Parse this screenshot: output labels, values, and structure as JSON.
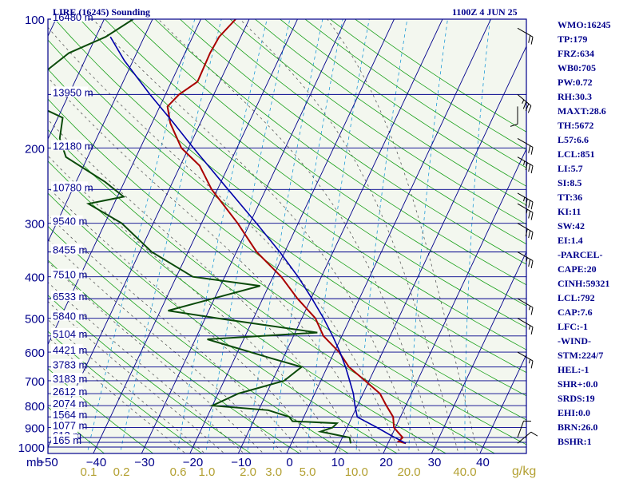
{
  "header": {
    "title": "LIRE (16245) Sounding",
    "datetime": "1100Z  4 JUN 25"
  },
  "indices": [
    "WMO:16245",
    "TP:179",
    "FRZ:634",
    "WB0:705",
    "PW:0.72",
    "RH:30.3",
    "MAXT:28.6",
    "TH:5672",
    "L57:6.6",
    "LCL:851",
    "LI:5.7",
    "SI:8.5",
    "TT:36",
    "KI:11",
    "SW:42",
    "EI:1.4",
    "-PARCEL-",
    "CAPE:20",
    "CINH:59321",
    "LCL:792",
    "CAP:7.6",
    "LFC:-1",
    "-WIND-",
    "STM:224/7",
    "HEL:-1",
    "SHR+:0.0",
    "SRDS:19",
    "EHI:0.0",
    "BRN:26.0",
    "BSHR:1"
  ],
  "colors": {
    "frame": "#00008b",
    "isobar": "#00008b",
    "isotherm": "#00008b",
    "dry_adiabat": "#1aa01a",
    "moist_adiabat": "#5a5a5a",
    "mixing_ratio": "#1e9bd7",
    "temperature": "#aa0000",
    "dewpoint": "#0a4a0a",
    "parcel": "#0000aa",
    "background": "#f3f7ef",
    "mixing_label": "#b3a032",
    "barb": "#000000"
  },
  "chart_data": {
    "type": "skew-t",
    "xlabel": "mb",
    "x_unit_right": "g/kg",
    "pressure_ticks": [
      100,
      200,
      300,
      400,
      500,
      600,
      700,
      800,
      900,
      1000
    ],
    "temperature_ticks": [
      -50,
      -40,
      -30,
      -20,
      -10,
      0,
      10,
      20,
      30,
      40
    ],
    "mixing_ratio_labels": [
      "0.1",
      "0.2",
      "0.6",
      "1.0",
      "2.0",
      "3.0",
      "5.0",
      "10.0",
      "20.0",
      "40.0"
    ],
    "mixing_ratio_values": [
      0.1,
      0.2,
      0.6,
      1.0,
      2.0,
      3.0,
      5.0,
      10.0,
      20.0,
      40.0
    ],
    "xlim_celsius_at_1000mb": [
      -50,
      50
    ],
    "ylim_mb": [
      1000,
      100
    ],
    "height_levels": [
      {
        "p": 100,
        "label": "16480 m"
      },
      {
        "p": 150,
        "label": "13950 m"
      },
      {
        "p": 200,
        "label": "12180 m"
      },
      {
        "p": 250,
        "label": "10780 m"
      },
      {
        "p": 300,
        "label": "9540 m"
      },
      {
        "p": 350,
        "label": "8455 m"
      },
      {
        "p": 400,
        "label": "7510 m"
      },
      {
        "p": 450,
        "label": "6533 m"
      },
      {
        "p": 500,
        "label": "5840 m"
      },
      {
        "p": 550,
        "label": "5104 m"
      },
      {
        "p": 600,
        "label": "4421 m"
      },
      {
        "p": 650,
        "label": "3783 m"
      },
      {
        "p": 700,
        "label": "3183 m"
      },
      {
        "p": 750,
        "label": "2612 m"
      },
      {
        "p": 800,
        "label": "2074 m"
      },
      {
        "p": 850,
        "label": "1564 m"
      },
      {
        "p": 900,
        "label": "1077 m"
      },
      {
        "p": 950,
        "label": "612 m"
      },
      {
        "p": 975,
        "label": "165 m"
      }
    ],
    "series": [
      {
        "name": "temperature",
        "points": [
          [
            980,
            23.7
          ],
          [
            970,
            22
          ],
          [
            950,
            22.5
          ],
          [
            925,
            21.1
          ],
          [
            900,
            19.7
          ],
          [
            850,
            18.5
          ],
          [
            800,
            16.0
          ],
          [
            750,
            13.5
          ],
          [
            700,
            9.2
          ],
          [
            650,
            4.5
          ],
          [
            600,
            1.0
          ],
          [
            550,
            -3.8
          ],
          [
            500,
            -7.2
          ],
          [
            450,
            -12.8
          ],
          [
            400,
            -18.3
          ],
          [
            350,
            -25.8
          ],
          [
            300,
            -32.5
          ],
          [
            250,
            -41.2
          ],
          [
            220,
            -46.0
          ],
          [
            200,
            -51.5
          ],
          [
            175,
            -56.2
          ],
          [
            160,
            -58.4
          ],
          [
            150,
            -57.2
          ],
          [
            140,
            -54.6
          ],
          [
            120,
            -54.8
          ],
          [
            110,
            -54.5
          ],
          [
            100,
            -52.8
          ]
        ]
      },
      {
        "name": "dewpoint",
        "points": [
          [
            980,
            12.3
          ],
          [
            950,
            11.5
          ],
          [
            920,
            4.9
          ],
          [
            900,
            7.0
          ],
          [
            880,
            7.5
          ],
          [
            870,
            -1.9
          ],
          [
            850,
            -3.0
          ],
          [
            820,
            -8.0
          ],
          [
            800,
            -20.0
          ],
          [
            750,
            -15.8
          ],
          [
            700,
            -7.6
          ],
          [
            650,
            -5.3
          ],
          [
            620,
            -12.5
          ],
          [
            560,
            -27.5
          ],
          [
            540,
            -5.4
          ],
          [
            500,
            -27.5
          ],
          [
            480,
            -38.4
          ],
          [
            420,
            -21.8
          ],
          [
            400,
            -36.6
          ],
          [
            350,
            -47.5
          ],
          [
            300,
            -56.5
          ],
          [
            270,
            -65.3
          ],
          [
            260,
            -58.7
          ],
          [
            240,
            -64.0
          ],
          [
            210,
            -74.5
          ],
          [
            200,
            -76.0
          ],
          [
            190,
            -77.6
          ],
          [
            170,
            -79.0
          ],
          [
            160,
            -85.0
          ],
          [
            150,
            -90.0
          ],
          [
            130,
            -86.5
          ],
          [
            120,
            -84.0
          ],
          [
            110,
            -78.0
          ],
          [
            100,
            -74.0
          ]
        ]
      },
      {
        "name": "parcel",
        "points": [
          [
            980,
            23.7
          ],
          [
            940,
            19.9
          ],
          [
            900,
            16.2
          ],
          [
            851,
            11.1
          ],
          [
            800,
            9.5
          ],
          [
            750,
            8.0
          ],
          [
            700,
            6.0
          ],
          [
            650,
            3.8
          ],
          [
            600,
            1.2
          ],
          [
            550,
            -1.9
          ],
          [
            500,
            -5.5
          ],
          [
            450,
            -9.8
          ],
          [
            400,
            -14.8
          ],
          [
            350,
            -21.0
          ],
          [
            300,
            -28.6
          ],
          [
            250,
            -37.8
          ],
          [
            200,
            -49.0
          ],
          [
            175,
            -55.5
          ],
          [
            150,
            -63.2
          ],
          [
            125,
            -71.8
          ],
          [
            110,
            -77.0
          ]
        ]
      }
    ],
    "wind_barbs": [
      {
        "p": 105,
        "dir": 300,
        "speed_kt": 20
      },
      {
        "p": 150,
        "dir": 310,
        "speed_kt": 35
      },
      {
        "p": 160,
        "dir": 0,
        "speed_kt": 10
      },
      {
        "p": 190,
        "dir": 300,
        "speed_kt": 20
      },
      {
        "p": 210,
        "dir": 300,
        "speed_kt": 35
      },
      {
        "p": 255,
        "dir": 300,
        "speed_kt": 35
      },
      {
        "p": 270,
        "dir": 300,
        "speed_kt": 25
      },
      {
        "p": 300,
        "dir": 300,
        "speed_kt": 30
      },
      {
        "p": 350,
        "dir": 300,
        "speed_kt": 25
      },
      {
        "p": 450,
        "dir": 300,
        "speed_kt": 15
      },
      {
        "p": 500,
        "dir": 300,
        "speed_kt": 15
      },
      {
        "p": 600,
        "dir": 300,
        "speed_kt": 15
      },
      {
        "p": 950,
        "dir": 200,
        "speed_kt": 10
      },
      {
        "p": 980,
        "dir": 230,
        "speed_kt": 10
      }
    ]
  }
}
